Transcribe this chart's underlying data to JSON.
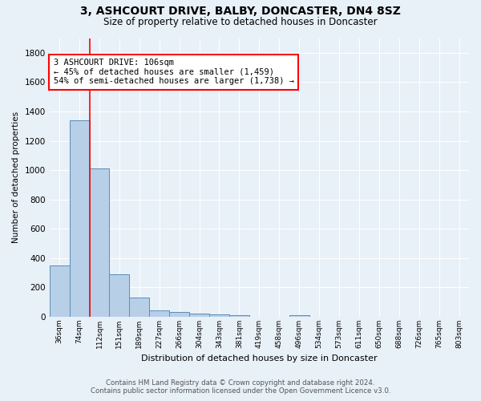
{
  "title": "3, ASHCOURT DRIVE, BALBY, DONCASTER, DN4 8SZ",
  "subtitle": "Size of property relative to detached houses in Doncaster",
  "xlabel": "Distribution of detached houses by size in Doncaster",
  "ylabel": "Number of detached properties",
  "footer_line1": "Contains HM Land Registry data © Crown copyright and database right 2024.",
  "footer_line2": "Contains public sector information licensed under the Open Government Licence v3.0.",
  "categories": [
    "36sqm",
    "74sqm",
    "112sqm",
    "151sqm",
    "189sqm",
    "227sqm",
    "266sqm",
    "304sqm",
    "343sqm",
    "381sqm",
    "419sqm",
    "458sqm",
    "496sqm",
    "534sqm",
    "573sqm",
    "611sqm",
    "650sqm",
    "688sqm",
    "726sqm",
    "765sqm",
    "803sqm"
  ],
  "values": [
    350,
    1340,
    1010,
    290,
    130,
    42,
    35,
    20,
    15,
    12,
    0,
    0,
    12,
    0,
    0,
    0,
    0,
    0,
    0,
    0,
    0
  ],
  "bar_color": "#b8cfe8",
  "bar_edge_color": "#5b8db8",
  "background_color": "#e8f0f8",
  "grid_color": "#ffffff",
  "red_line_x": 1.5,
  "annotation_text": "3 ASHCOURT DRIVE: 106sqm\n← 45% of detached houses are smaller (1,459)\n54% of semi-detached houses are larger (1,738) →",
  "ylim": [
    0,
    1900
  ],
  "yticks": [
    0,
    200,
    400,
    600,
    800,
    1000,
    1200,
    1400,
    1600,
    1800
  ]
}
